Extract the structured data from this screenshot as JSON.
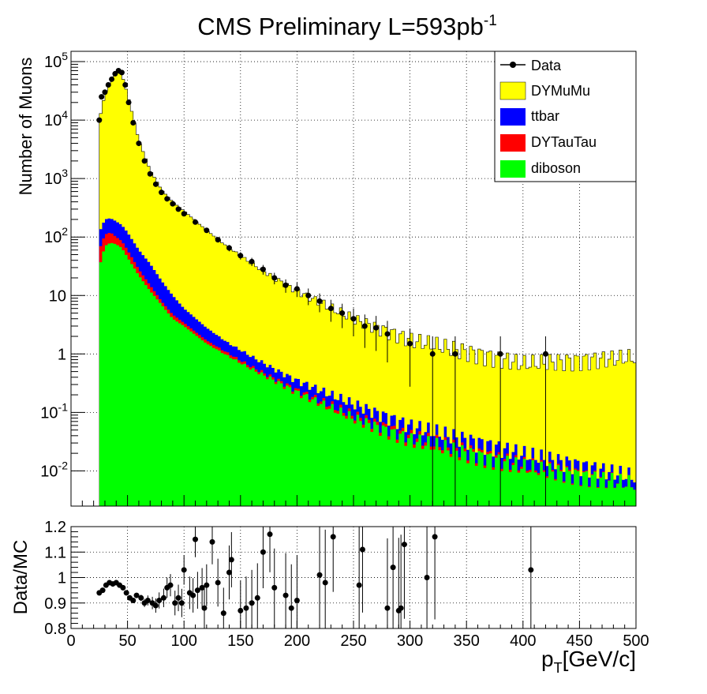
{
  "title": "CMS Preliminary L=593pb",
  "title_sup": "-1",
  "chart_data": [
    {
      "type": "area",
      "scale": "log",
      "ylabel": "Number of Muons",
      "xlim": [
        0,
        500
      ],
      "ylim": [
        0.0025,
        150000
      ],
      "grid": true,
      "legend_position": "top-right",
      "y_tick_labels": [
        {
          "base": "10",
          "exp": "-2",
          "v": 0.01
        },
        {
          "base": "10",
          "exp": "-1",
          "v": 0.1
        },
        {
          "base": "1",
          "exp": "",
          "v": 1
        },
        {
          "base": "10",
          "exp": "",
          "v": 10
        },
        {
          "base": "10",
          "exp": "2",
          "v": 100
        },
        {
          "base": "10",
          "exp": "3",
          "v": 1000
        },
        {
          "base": "10",
          "exp": "4",
          "v": 10000
        },
        {
          "base": "10",
          "exp": "5",
          "v": 100000
        }
      ],
      "series": [
        {
          "name": "diboson",
          "color": "#00ff00",
          "x": [
            25,
            30,
            35,
            40,
            45,
            50,
            60,
            70,
            80,
            90,
            100,
            120,
            140,
            160,
            180,
            200,
            250,
            300,
            400,
            500
          ],
          "values": [
            30,
            70,
            80,
            75,
            65,
            45,
            22,
            12,
            7,
            4,
            3,
            1.5,
            0.9,
            0.55,
            0.35,
            0.22,
            0.08,
            0.035,
            0.012,
            0.006
          ]
        },
        {
          "name": "DYTauTau",
          "color": "#ff0000",
          "x": [
            25,
            30,
            35,
            40,
            45,
            50,
            60,
            70,
            80,
            90,
            100,
            120,
            140,
            160,
            180,
            200,
            250,
            300,
            400,
            500
          ],
          "values": [
            60,
            110,
            120,
            100,
            85,
            60,
            28,
            15,
            8,
            4.7,
            3.4,
            1.7,
            1.0,
            0.6,
            0.38,
            0.24,
            0.09,
            0.04,
            0.013,
            0.006
          ]
        },
        {
          "name": "ttbar",
          "color": "#0000ff",
          "x": [
            25,
            30,
            35,
            40,
            45,
            50,
            60,
            70,
            80,
            90,
            100,
            120,
            140,
            160,
            180,
            200,
            250,
            300,
            400,
            500
          ],
          "values": [
            120,
            200,
            210,
            185,
            160,
            120,
            60,
            35,
            18,
            10,
            6,
            2.8,
            1.5,
            0.9,
            0.55,
            0.35,
            0.14,
            0.06,
            0.02,
            0.008
          ]
        },
        {
          "name": "DYMuMu",
          "color": "#ffff00",
          "x": [
            25,
            30,
            35,
            40,
            45,
            50,
            60,
            70,
            80,
            90,
            100,
            120,
            140,
            160,
            180,
            200,
            250,
            300,
            400,
            500
          ],
          "values": [
            10000,
            28000,
            45000,
            68000,
            60000,
            28000,
            4500,
            1400,
            650,
            400,
            280,
            130,
            65,
            35,
            20,
            12,
            4,
            1.8,
            0.7,
            0.9
          ]
        }
      ],
      "data_points": {
        "name": "Data",
        "x": [
          25,
          27,
          30,
          33,
          36,
          39,
          42,
          45,
          48,
          51,
          55,
          60,
          65,
          70,
          75,
          80,
          85,
          90,
          95,
          100,
          110,
          120,
          130,
          140,
          150,
          160,
          170,
          180,
          190,
          200,
          210,
          220,
          230,
          240,
          250,
          260,
          270,
          280,
          300,
          320,
          340,
          380,
          420
        ],
        "y": [
          10000,
          25000,
          30000,
          40000,
          50000,
          62000,
          70000,
          65000,
          40000,
          20000,
          9000,
          4000,
          2000,
          1200,
          800,
          580,
          450,
          370,
          300,
          250,
          180,
          130,
          90,
          65,
          48,
          38,
          28,
          20,
          15,
          13,
          10,
          8,
          6,
          5,
          4,
          3,
          2.8,
          2.2,
          1.5,
          1,
          1,
          1,
          1
        ]
      }
    },
    {
      "type": "scatter",
      "ylabel": "Data/MC",
      "xlabel_base": "p",
      "xlabel_sub": "T",
      "xlabel_rest": "[GeV/c]",
      "xlim": [
        0,
        500
      ],
      "ylim": [
        0.8,
        1.2
      ],
      "grid": true,
      "x_tick_labels": [
        "0",
        "50",
        "100",
        "150",
        "200",
        "250",
        "300",
        "350",
        "400",
        "450",
        "500"
      ],
      "y_tick_labels": [
        "0.8",
        "0.9",
        "1",
        "1.1",
        "1.2"
      ],
      "x": [
        25,
        28,
        31,
        34,
        37,
        40,
        43,
        46,
        49,
        52,
        55,
        58,
        62,
        65,
        68,
        72,
        75,
        78,
        82,
        85,
        88,
        92,
        95,
        98,
        100,
        105,
        108,
        110,
        112,
        116,
        118,
        120,
        125,
        130,
        135,
        140,
        142,
        150,
        155,
        160,
        165,
        170,
        176,
        180,
        190,
        195,
        200,
        220,
        225,
        232,
        255,
        258,
        280,
        285,
        290,
        292,
        295,
        315,
        322,
        407
      ],
      "values": [
        0.94,
        0.95,
        0.97,
        0.98,
        0.975,
        0.98,
        0.97,
        0.96,
        0.94,
        0.92,
        0.91,
        0.93,
        0.92,
        0.9,
        0.91,
        0.9,
        0.89,
        0.91,
        0.92,
        0.96,
        0.97,
        0.9,
        0.92,
        0.9,
        1.03,
        0.94,
        0.93,
        1.15,
        0.95,
        0.96,
        0.88,
        0.97,
        1.14,
        0.98,
        0.86,
        1.02,
        1.07,
        0.87,
        0.88,
        0.9,
        0.92,
        1.1,
        1.17,
        0.96,
        0.93,
        0.88,
        0.91,
        1.01,
        0.98,
        1.16,
        0.97,
        1.11,
        0.88,
        1.04,
        0.87,
        0.88,
        1.13,
        1.0,
        1.16,
        1.03
      ],
      "reference_line": 1
    }
  ]
}
